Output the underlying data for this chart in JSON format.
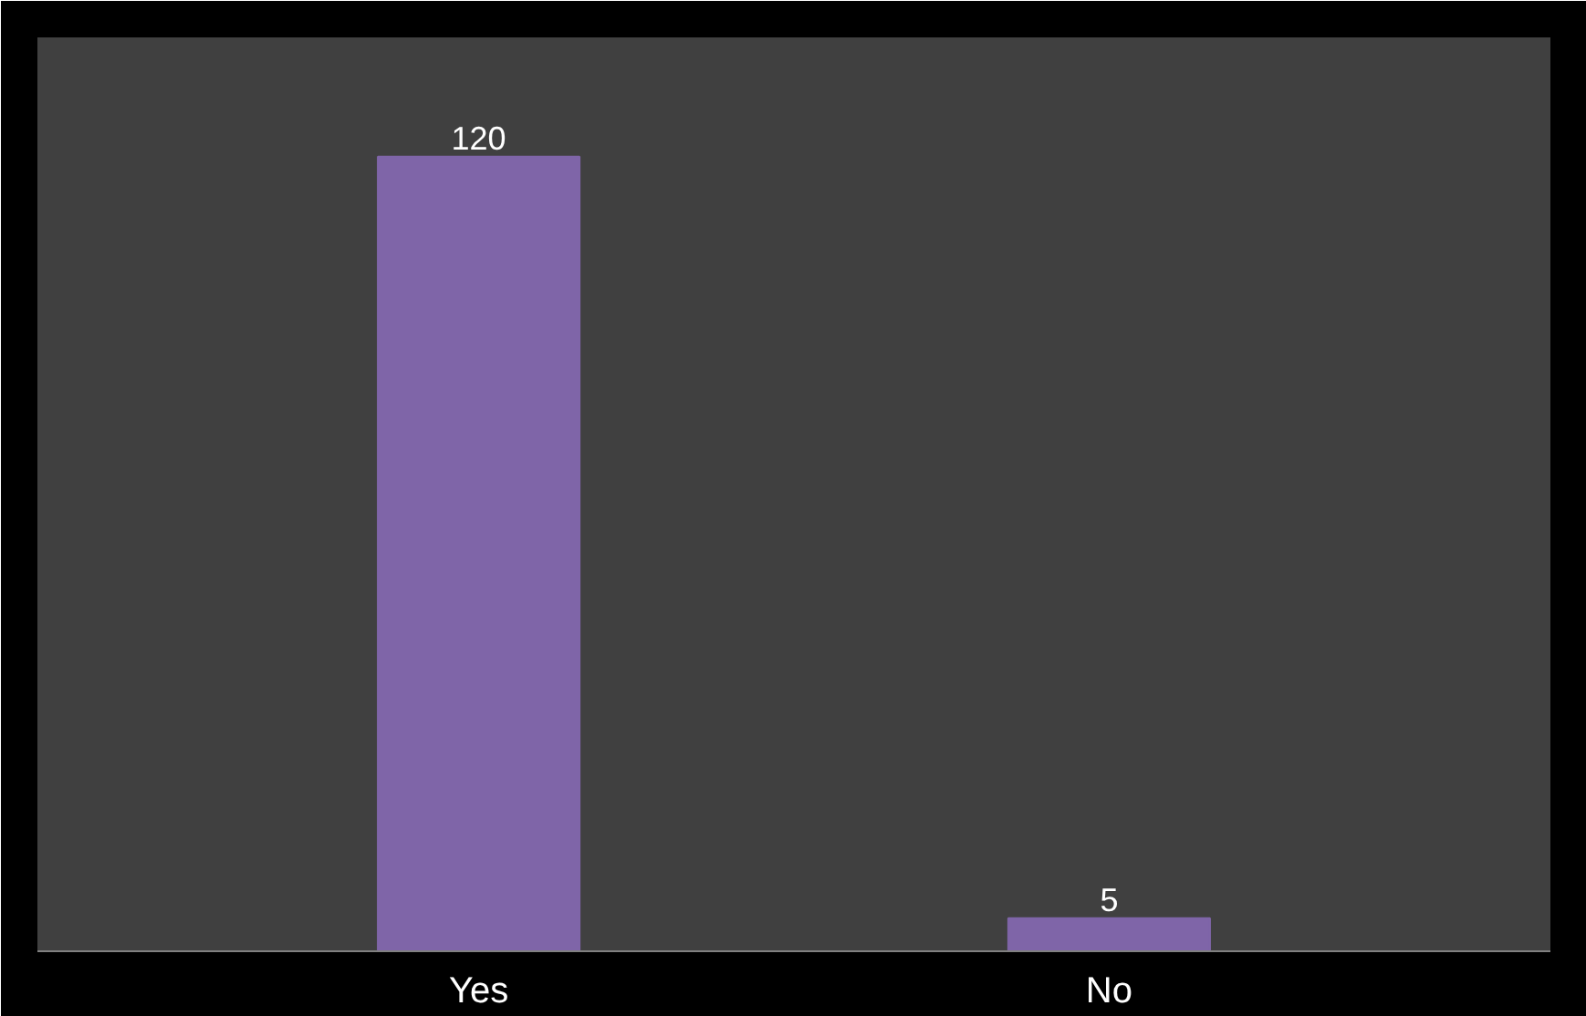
{
  "chart_data": {
    "type": "bar",
    "categories": [
      "Yes",
      "No"
    ],
    "values": [
      120,
      5
    ],
    "color": "#7f65a8",
    "data_labels": true,
    "grid": false
  }
}
